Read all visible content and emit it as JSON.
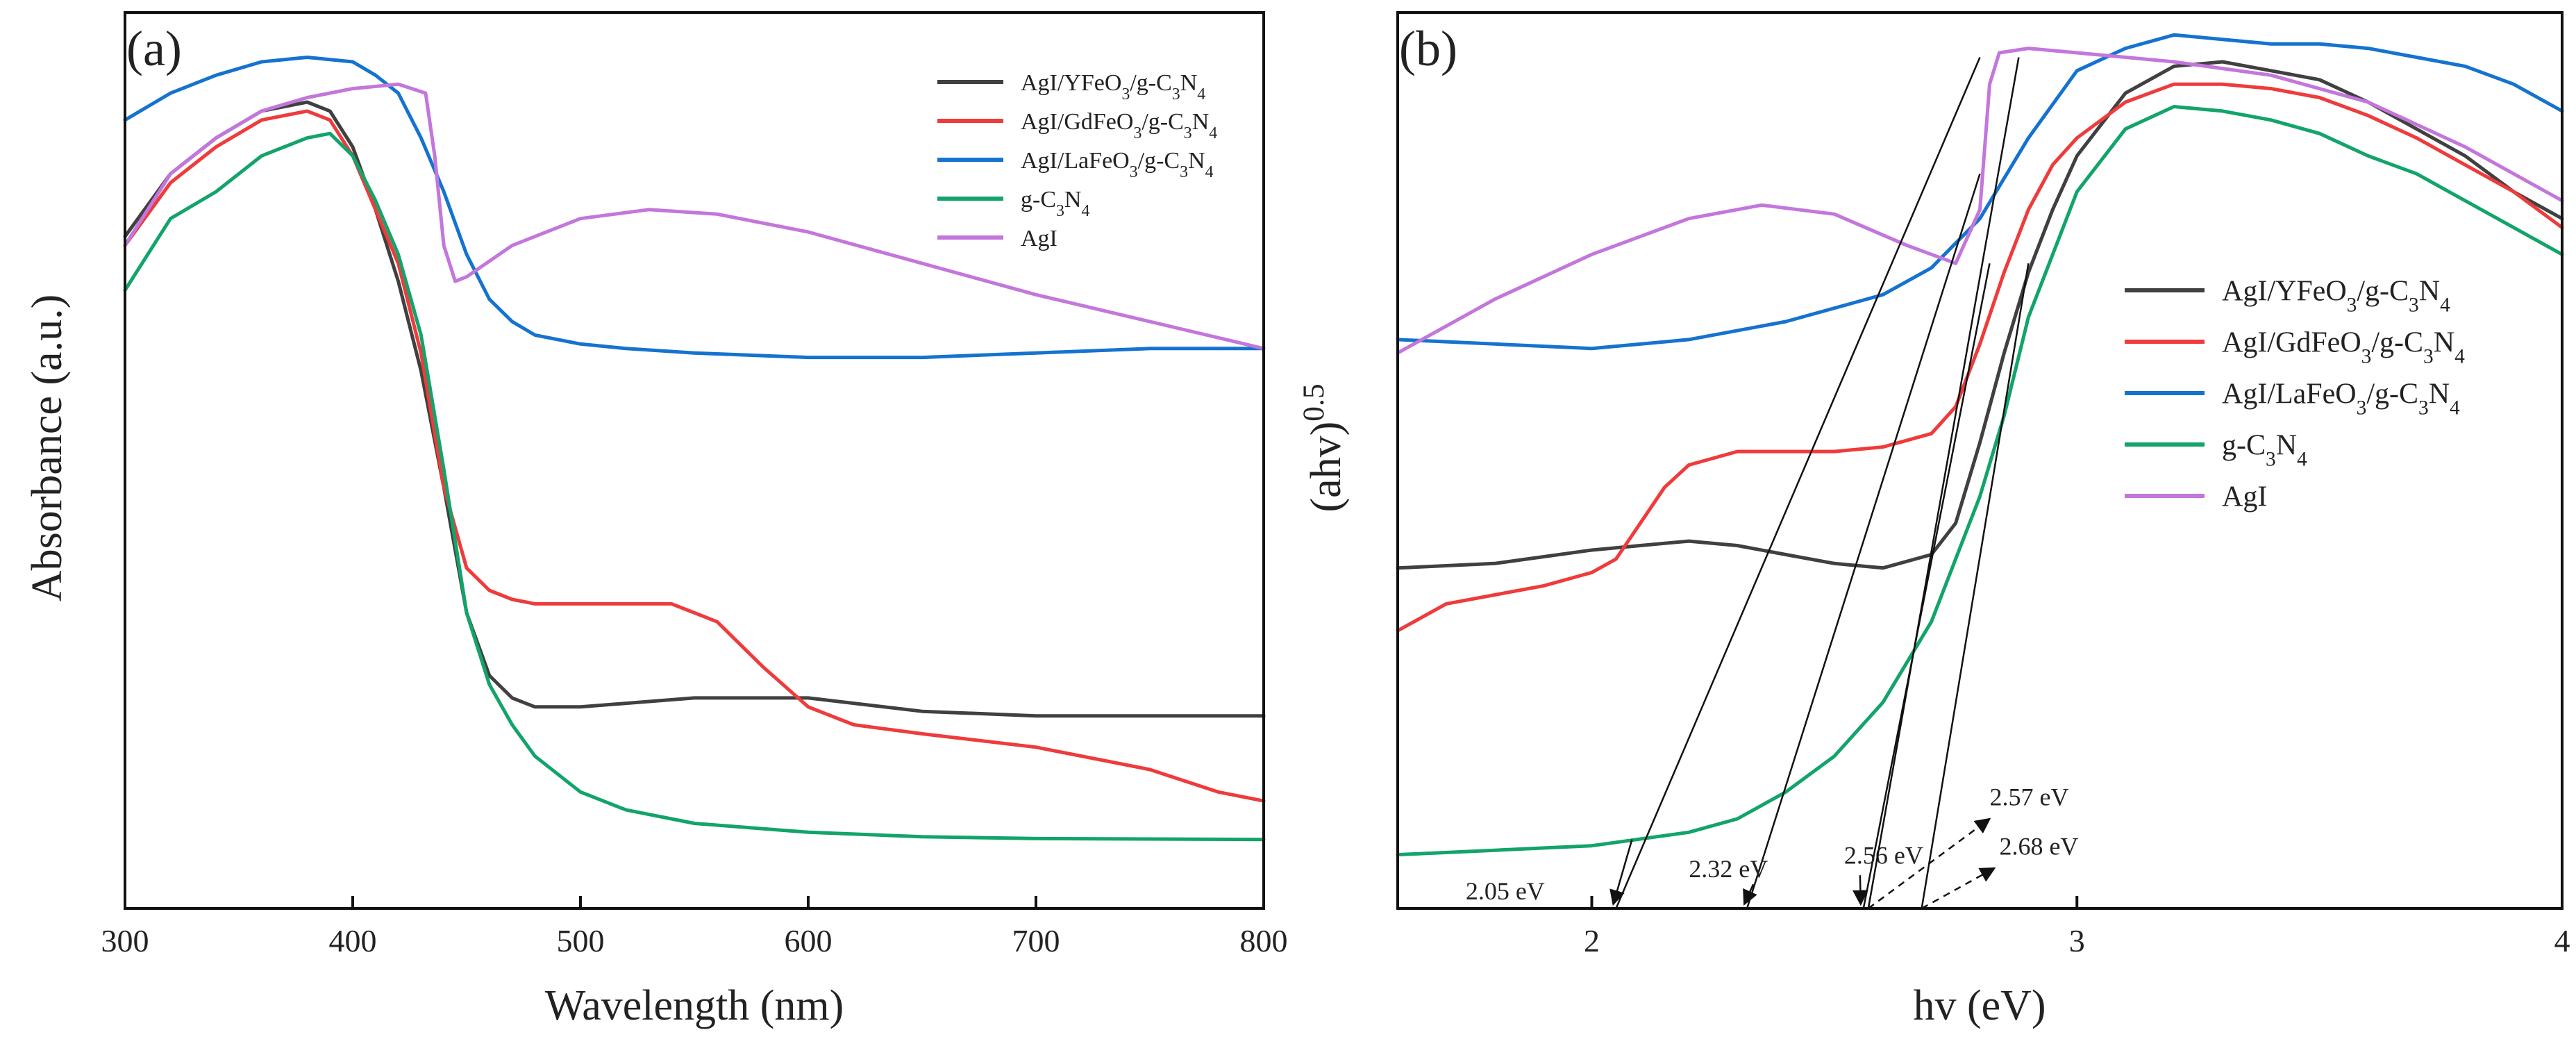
{
  "colors": {
    "AgI/YFeO3/g-C3N4": "#404040",
    "AgI/GdFeO3/g-C3N4": "#ef3b3b",
    "AgI/LaFeO3/g-C3N4": "#1573cf",
    "g-C3N4": "#12a46a",
    "AgI": "#c376dc",
    "axis": "#111111",
    "tangent": "#111111"
  },
  "chart_data": [
    {
      "type": "line",
      "panel_label": "(a)",
      "xlabel": "Wavelength (nm)",
      "ylabel": "Absorbance (a.u.)",
      "xlim": [
        300,
        800
      ],
      "ylim": [
        0,
        1
      ],
      "xticks": [
        300,
        400,
        500,
        600,
        700,
        800
      ],
      "xtick_labels": [
        "300",
        "400",
        "500",
        "600",
        "700",
        "800"
      ],
      "y_tick_labels_shown": false,
      "legend_position": "top-right",
      "series": [
        {
          "name": "AgI/YFeO3/g-C3N4",
          "legend": {
            "parts": [
              {
                "t": "AgI/YFeO"
              },
              {
                "t": "3",
                "s": "sub"
              },
              {
                "t": "/g-C"
              },
              {
                "t": "3",
                "s": "sub"
              },
              {
                "t": "N"
              },
              {
                "t": "4",
                "s": "sub"
              }
            ]
          },
          "x": [
            300,
            320,
            340,
            360,
            380,
            390,
            400,
            410,
            420,
            430,
            440,
            450,
            460,
            470,
            480,
            500,
            550,
            600,
            650,
            700,
            750,
            800
          ],
          "y": [
            0.75,
            0.82,
            0.86,
            0.89,
            0.9,
            0.89,
            0.85,
            0.78,
            0.7,
            0.6,
            0.47,
            0.33,
            0.26,
            0.235,
            0.225,
            0.225,
            0.235,
            0.235,
            0.22,
            0.215,
            0.215,
            0.215
          ]
        },
        {
          "name": "AgI/GdFeO3/g-C3N4",
          "legend": {
            "parts": [
              {
                "t": "AgI/GdFeO"
              },
              {
                "t": "3",
                "s": "sub"
              },
              {
                "t": "/g-C"
              },
              {
                "t": "3",
                "s": "sub"
              },
              {
                "t": "N"
              },
              {
                "t": "4",
                "s": "sub"
              }
            ]
          },
          "x": [
            300,
            320,
            340,
            360,
            380,
            390,
            400,
            410,
            420,
            430,
            440,
            450,
            460,
            470,
            480,
            500,
            520,
            540,
            560,
            580,
            600,
            620,
            650,
            700,
            750,
            780,
            800
          ],
          "y": [
            0.74,
            0.81,
            0.85,
            0.88,
            0.89,
            0.88,
            0.84,
            0.78,
            0.72,
            0.62,
            0.47,
            0.38,
            0.355,
            0.345,
            0.34,
            0.34,
            0.34,
            0.34,
            0.32,
            0.27,
            0.225,
            0.205,
            0.195,
            0.18,
            0.155,
            0.13,
            0.12
          ]
        },
        {
          "name": "AgI/LaFeO3/g-C3N4",
          "legend": {
            "parts": [
              {
                "t": "AgI/LaFeO"
              },
              {
                "t": "3",
                "s": "sub"
              },
              {
                "t": "/g-C"
              },
              {
                "t": "3",
                "s": "sub"
              },
              {
                "t": "N"
              },
              {
                "t": "4",
                "s": "sub"
              }
            ]
          },
          "x": [
            300,
            320,
            340,
            360,
            380,
            400,
            410,
            420,
            430,
            440,
            450,
            460,
            470,
            480,
            500,
            520,
            550,
            600,
            650,
            700,
            750,
            800
          ],
          "y": [
            0.88,
            0.91,
            0.93,
            0.945,
            0.95,
            0.945,
            0.93,
            0.91,
            0.86,
            0.8,
            0.73,
            0.68,
            0.655,
            0.64,
            0.63,
            0.625,
            0.62,
            0.615,
            0.615,
            0.62,
            0.625,
            0.625
          ]
        },
        {
          "name": "g-C3N4",
          "legend": {
            "parts": [
              {
                "t": "g-C"
              },
              {
                "t": "3",
                "s": "sub"
              },
              {
                "t": "N"
              },
              {
                "t": "4",
                "s": "sub"
              }
            ]
          },
          "x": [
            300,
            320,
            340,
            360,
            380,
            390,
            400,
            410,
            420,
            430,
            440,
            450,
            460,
            470,
            480,
            500,
            520,
            550,
            600,
            650,
            700,
            800
          ],
          "y": [
            0.69,
            0.77,
            0.8,
            0.84,
            0.86,
            0.865,
            0.84,
            0.79,
            0.73,
            0.64,
            0.49,
            0.33,
            0.25,
            0.205,
            0.17,
            0.13,
            0.11,
            0.095,
            0.085,
            0.08,
            0.078,
            0.077
          ]
        },
        {
          "name": "AgI",
          "legend": {
            "parts": [
              {
                "t": "AgI"
              }
            ]
          },
          "x": [
            300,
            320,
            340,
            360,
            380,
            400,
            420,
            432,
            436,
            440,
            445,
            450,
            470,
            500,
            530,
            560,
            600,
            650,
            700,
            750,
            800
          ],
          "y": [
            0.74,
            0.82,
            0.86,
            0.89,
            0.905,
            0.915,
            0.92,
            0.91,
            0.84,
            0.74,
            0.7,
            0.705,
            0.74,
            0.77,
            0.78,
            0.775,
            0.755,
            0.72,
            0.685,
            0.655,
            0.625
          ]
        }
      ]
    },
    {
      "type": "line",
      "panel_label": "(b)",
      "xlabel": "hv (eV)",
      "ylabel": "(ahv)^0.5",
      "ylabel_parts": [
        {
          "t": "(ahv)"
        },
        {
          "t": "0.5",
          "s": "sup"
        }
      ],
      "xlim": [
        1.6,
        4.0
      ],
      "ylim": [
        0,
        1
      ],
      "xticks": [
        2,
        3,
        4
      ],
      "xtick_labels": [
        "2",
        "3",
        "4"
      ],
      "y_tick_labels_shown": false,
      "legend_position": "center-right",
      "series": [
        {
          "name": "AgI/YFeO3/g-C3N4",
          "legend": {
            "parts": [
              {
                "t": "AgI/YFeO"
              },
              {
                "t": "3",
                "s": "sub"
              },
              {
                "t": "/g-C"
              },
              {
                "t": "3",
                "s": "sub"
              },
              {
                "t": "N"
              },
              {
                "t": "4",
                "s": "sub"
              }
            ]
          },
          "x": [
            1.6,
            1.8,
            2.0,
            2.1,
            2.2,
            2.3,
            2.4,
            2.5,
            2.6,
            2.7,
            2.75,
            2.8,
            2.85,
            2.9,
            2.95,
            3.0,
            3.1,
            3.2,
            3.3,
            3.4,
            3.5,
            3.6,
            3.7,
            3.8,
            3.9,
            4.0
          ],
          "y": [
            0.38,
            0.385,
            0.4,
            0.405,
            0.41,
            0.405,
            0.395,
            0.385,
            0.38,
            0.395,
            0.43,
            0.52,
            0.62,
            0.71,
            0.78,
            0.84,
            0.91,
            0.94,
            0.945,
            0.935,
            0.925,
            0.9,
            0.87,
            0.84,
            0.8,
            0.77
          ]
        },
        {
          "name": "AgI/GdFeO3/g-C3N4",
          "legend": {
            "parts": [
              {
                "t": "AgI/GdFeO"
              },
              {
                "t": "3",
                "s": "sub"
              },
              {
                "t": "/g-C"
              },
              {
                "t": "3",
                "s": "sub"
              },
              {
                "t": "N"
              },
              {
                "t": "4",
                "s": "sub"
              }
            ]
          },
          "x": [
            1.6,
            1.7,
            1.8,
            1.9,
            2.0,
            2.05,
            2.1,
            2.15,
            2.2,
            2.3,
            2.4,
            2.5,
            2.6,
            2.7,
            2.75,
            2.8,
            2.85,
            2.9,
            2.95,
            3.0,
            3.1,
            3.2,
            3.3,
            3.4,
            3.5,
            3.6,
            3.7,
            3.8,
            3.9,
            4.0
          ],
          "y": [
            0.31,
            0.34,
            0.35,
            0.36,
            0.375,
            0.39,
            0.43,
            0.47,
            0.495,
            0.51,
            0.51,
            0.51,
            0.515,
            0.53,
            0.56,
            0.63,
            0.71,
            0.78,
            0.83,
            0.86,
            0.9,
            0.92,
            0.92,
            0.915,
            0.905,
            0.885,
            0.86,
            0.83,
            0.8,
            0.76
          ]
        },
        {
          "name": "AgI/LaFeO3/g-C3N4",
          "legend": {
            "parts": [
              {
                "t": "AgI/LaFeO"
              },
              {
                "t": "3",
                "s": "sub"
              },
              {
                "t": "/g-C"
              },
              {
                "t": "3",
                "s": "sub"
              },
              {
                "t": "N"
              },
              {
                "t": "4",
                "s": "sub"
              }
            ]
          },
          "x": [
            1.6,
            1.8,
            2.0,
            2.2,
            2.4,
            2.6,
            2.7,
            2.8,
            2.9,
            3.0,
            3.1,
            3.2,
            3.3,
            3.4,
            3.5,
            3.6,
            3.7,
            3.8,
            3.9,
            4.0
          ],
          "y": [
            0.635,
            0.63,
            0.625,
            0.635,
            0.655,
            0.685,
            0.715,
            0.77,
            0.86,
            0.935,
            0.96,
            0.975,
            0.97,
            0.965,
            0.965,
            0.96,
            0.95,
            0.94,
            0.92,
            0.89
          ]
        },
        {
          "name": "g-C3N4",
          "legend": {
            "parts": [
              {
                "t": "g-C"
              },
              {
                "t": "3",
                "s": "sub"
              },
              {
                "t": "N"
              },
              {
                "t": "4",
                "s": "sub"
              }
            ]
          },
          "x": [
            1.6,
            1.8,
            2.0,
            2.2,
            2.3,
            2.4,
            2.5,
            2.6,
            2.7,
            2.8,
            2.85,
            2.9,
            3.0,
            3.1,
            3.2,
            3.3,
            3.4,
            3.5,
            3.6,
            3.7,
            3.8,
            3.9,
            4.0
          ],
          "y": [
            0.06,
            0.065,
            0.07,
            0.085,
            0.1,
            0.13,
            0.17,
            0.23,
            0.32,
            0.46,
            0.55,
            0.66,
            0.8,
            0.87,
            0.895,
            0.89,
            0.88,
            0.865,
            0.84,
            0.82,
            0.79,
            0.76,
            0.73
          ]
        },
        {
          "name": "AgI",
          "legend": {
            "parts": [
              {
                "t": "AgI"
              }
            ]
          },
          "x": [
            1.6,
            1.8,
            2.0,
            2.2,
            2.35,
            2.5,
            2.65,
            2.75,
            2.8,
            2.82,
            2.84,
            2.9,
            3.0,
            3.2,
            3.4,
            3.6,
            3.8,
            4.0
          ],
          "y": [
            0.62,
            0.68,
            0.73,
            0.77,
            0.785,
            0.775,
            0.74,
            0.72,
            0.78,
            0.92,
            0.955,
            0.96,
            0.955,
            0.945,
            0.93,
            0.9,
            0.85,
            0.79
          ]
        }
      ],
      "tangents": [
        {
          "label": "2.05 eV",
          "x0": 2.05,
          "x1": 2.8,
          "y1": 0.95,
          "arrow": "solid"
        },
        {
          "label": "2.32 eV",
          "x0": 2.32,
          "x1": 2.8,
          "y1": 0.82,
          "arrow": "solid"
        },
        {
          "label": "2.56 eV",
          "x0": 2.56,
          "x1": 2.82,
          "y1": 0.72,
          "arrow": "solid"
        },
        {
          "label": "2.57 eV",
          "x0": 2.57,
          "x1": 2.88,
          "y1": 0.95,
          "arrow": "dashed"
        },
        {
          "label": "2.68 eV",
          "x0": 2.68,
          "x1": 2.9,
          "y1": 0.72,
          "arrow": "dashed"
        }
      ]
    }
  ]
}
